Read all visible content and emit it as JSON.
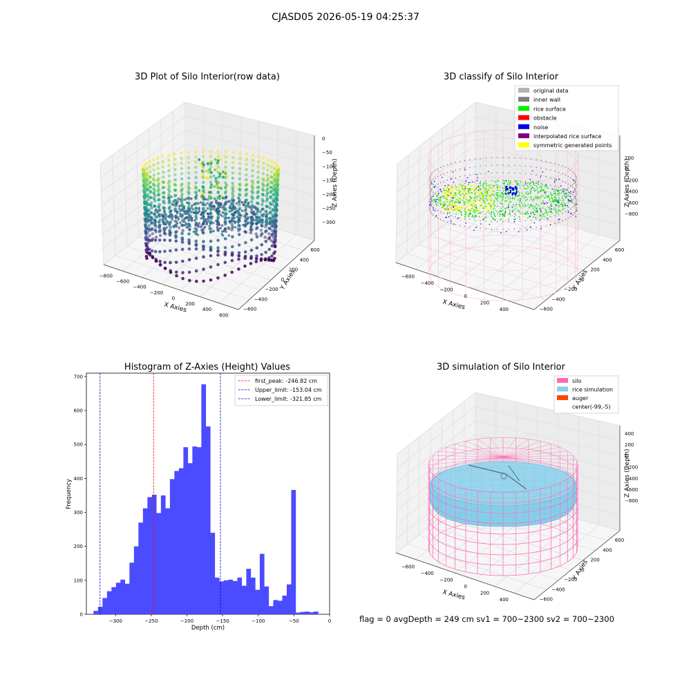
{
  "figure": {
    "suptitle": "CJASD05 2026-05-19 04:25:37",
    "status_line": "flag = 0     avgDepth = 249 cm  sv1 = 700~2300  sv2 = 700~2300"
  },
  "colors": {
    "original_data": "#b3b3b3",
    "inner_wall": "#808080",
    "rice_surface": "#00ee00",
    "obstacle": "#ff0000",
    "noise": "#0000ee",
    "interpolated": "#800080",
    "symmetric": "#ffff00",
    "silo": "#ff69b4",
    "rice_sim": "#87ceeb",
    "auger": "#ff4500",
    "hist_bar": "#4b4bff"
  },
  "chart_data": [
    {
      "type": "scatter3d",
      "title": "3D Plot of Silo Interior(row data)",
      "xlabel": "X Axies",
      "ylabel": "Y Axies",
      "zlabel": "Z Axies (Depth)",
      "x_ticks": [
        -800,
        -600,
        -400,
        -200,
        0,
        200,
        400,
        600
      ],
      "y_ticks": [
        -600,
        -400,
        -200,
        0,
        200,
        400,
        600
      ],
      "z_ticks": [
        0,
        -50,
        -100,
        -150,
        -200,
        -250,
        -300
      ],
      "colormap": "viridis"
    },
    {
      "type": "scatter3d",
      "title": "3D classify of Silo Interior",
      "xlabel": "X Axies",
      "ylabel": "Y Axies",
      "zlabel": "Z Axies (Depth)",
      "x_ticks": [
        -600,
        -400,
        -200,
        0,
        200,
        400
      ],
      "y_ticks": [
        -600,
        -400,
        -200,
        0,
        200,
        400,
        600
      ],
      "z_ticks": [
        200,
        0,
        -200,
        -400,
        -600,
        -800
      ],
      "legend_position": "top-right",
      "legend": [
        {
          "label": "original data",
          "color": "#b3b3b3"
        },
        {
          "label": "inner wall",
          "color": "#808080"
        },
        {
          "label": "rice surface",
          "color": "#00ee00"
        },
        {
          "label": "obstacle",
          "color": "#ff0000"
        },
        {
          "label": "noise",
          "color": "#0000ee"
        },
        {
          "label": "interpolated rice surface",
          "color": "#800080"
        },
        {
          "label": "symmetric generated points",
          "color": "#ffff00"
        }
      ]
    },
    {
      "type": "bar",
      "title": "Histogram of Z-Axies (Height) Values",
      "xlabel": "Depth (cm)",
      "ylabel": "Frequency",
      "xlim": [
        -341,
        0
      ],
      "ylim": [
        0,
        710
      ],
      "x_ticks": [
        -300,
        -250,
        -200,
        -150,
        -100,
        -50,
        0
      ],
      "y_ticks": [
        0,
        100,
        200,
        300,
        400,
        500,
        600,
        700
      ],
      "bin_start": -331,
      "bin_width": 6.3,
      "values": [
        10,
        22,
        48,
        68,
        80,
        93,
        102,
        90,
        152,
        200,
        270,
        312,
        345,
        352,
        298,
        350,
        312,
        398,
        422,
        430,
        492,
        445,
        494,
        492,
        677,
        553,
        240,
        108,
        97,
        100,
        102,
        98,
        108,
        84,
        134,
        108,
        72,
        178,
        82,
        24,
        42,
        40,
        55,
        88,
        366,
        5,
        7,
        8,
        6,
        8
      ],
      "legend_position": "top-right",
      "vlines": [
        {
          "label": "first_peak: -246.82 cm",
          "x": -246.82,
          "color": "#ff0000"
        },
        {
          "label": "Upper_limit: -153.04 cm",
          "x": -153.04,
          "color": "#0000cc"
        },
        {
          "label": "Lower_limit: -321.85 cm",
          "x": -321.85,
          "color": "#0000cc"
        }
      ]
    },
    {
      "type": "surface3d",
      "title": "3D simulation of Silo Interior",
      "xlabel": "X Axies",
      "ylabel": "Y Axies",
      "zlabel": "Z Axies (Depth)",
      "x_ticks": [
        -600,
        -400,
        -200,
        0,
        200,
        400
      ],
      "y_ticks": [
        -600,
        -400,
        -200,
        0,
        200,
        400,
        600
      ],
      "z_ticks": [
        400,
        200,
        0,
        -200,
        -400,
        -600,
        -800
      ],
      "legend_position": "top-right",
      "legend": [
        {
          "label": "silo",
          "color": "#ff69b4"
        },
        {
          "label": "rice simulation",
          "color": "#87ceeb"
        },
        {
          "label": "auger",
          "color": "#ff4500"
        },
        {
          "label": "center(-99,-5)",
          "color": "#ffffff"
        }
      ]
    }
  ]
}
